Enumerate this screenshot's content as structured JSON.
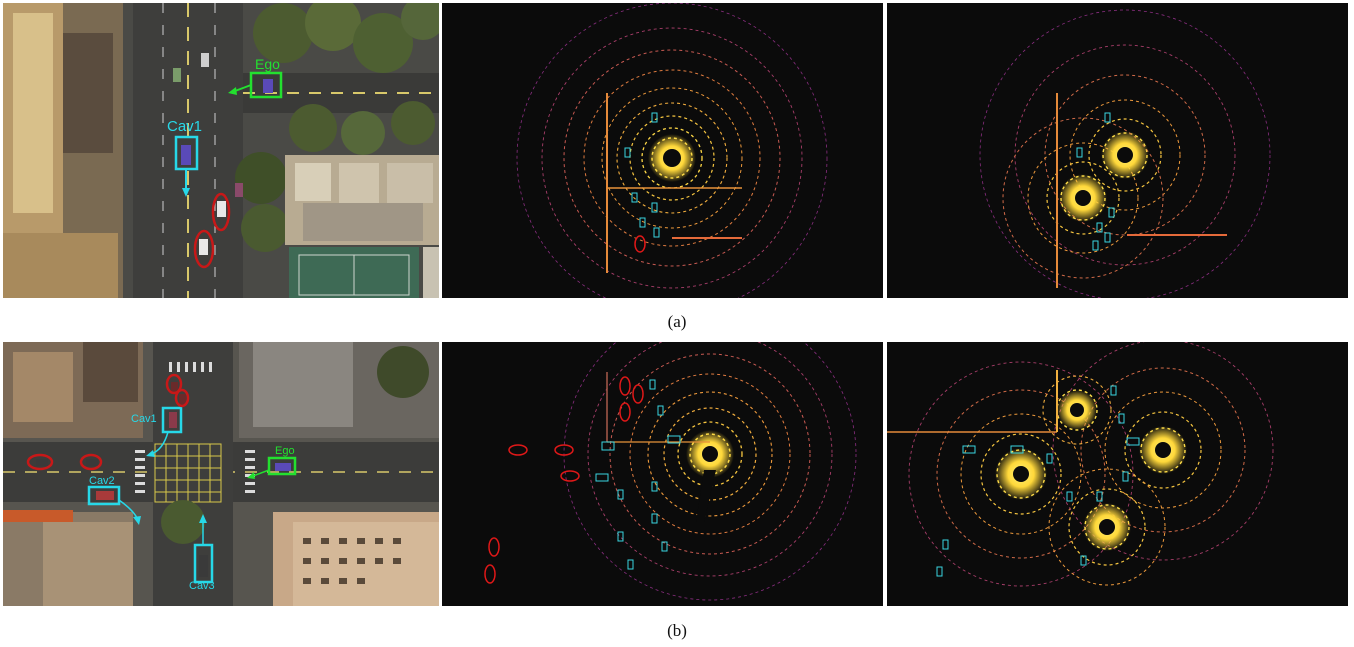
{
  "row_a": {
    "caption": "(a)",
    "scene": {
      "ego_label": "Ego",
      "cav_label": "Cav1"
    }
  },
  "row_b": {
    "caption": "(b)",
    "scene": {
      "ego_label": "Ego",
      "cav_labels": [
        "Cav1",
        "Cav2",
        "Cav3"
      ]
    }
  },
  "colors": {
    "ego_box": "#23e02f",
    "cav_box": "#27d8e8",
    "missed_object_ellipse": "#e01818",
    "lidar_core": "#ffe24a",
    "lidar_mid": "#f39a3a",
    "lidar_far": "#9b2e8f",
    "lidar_background": "#0b0b0b"
  }
}
